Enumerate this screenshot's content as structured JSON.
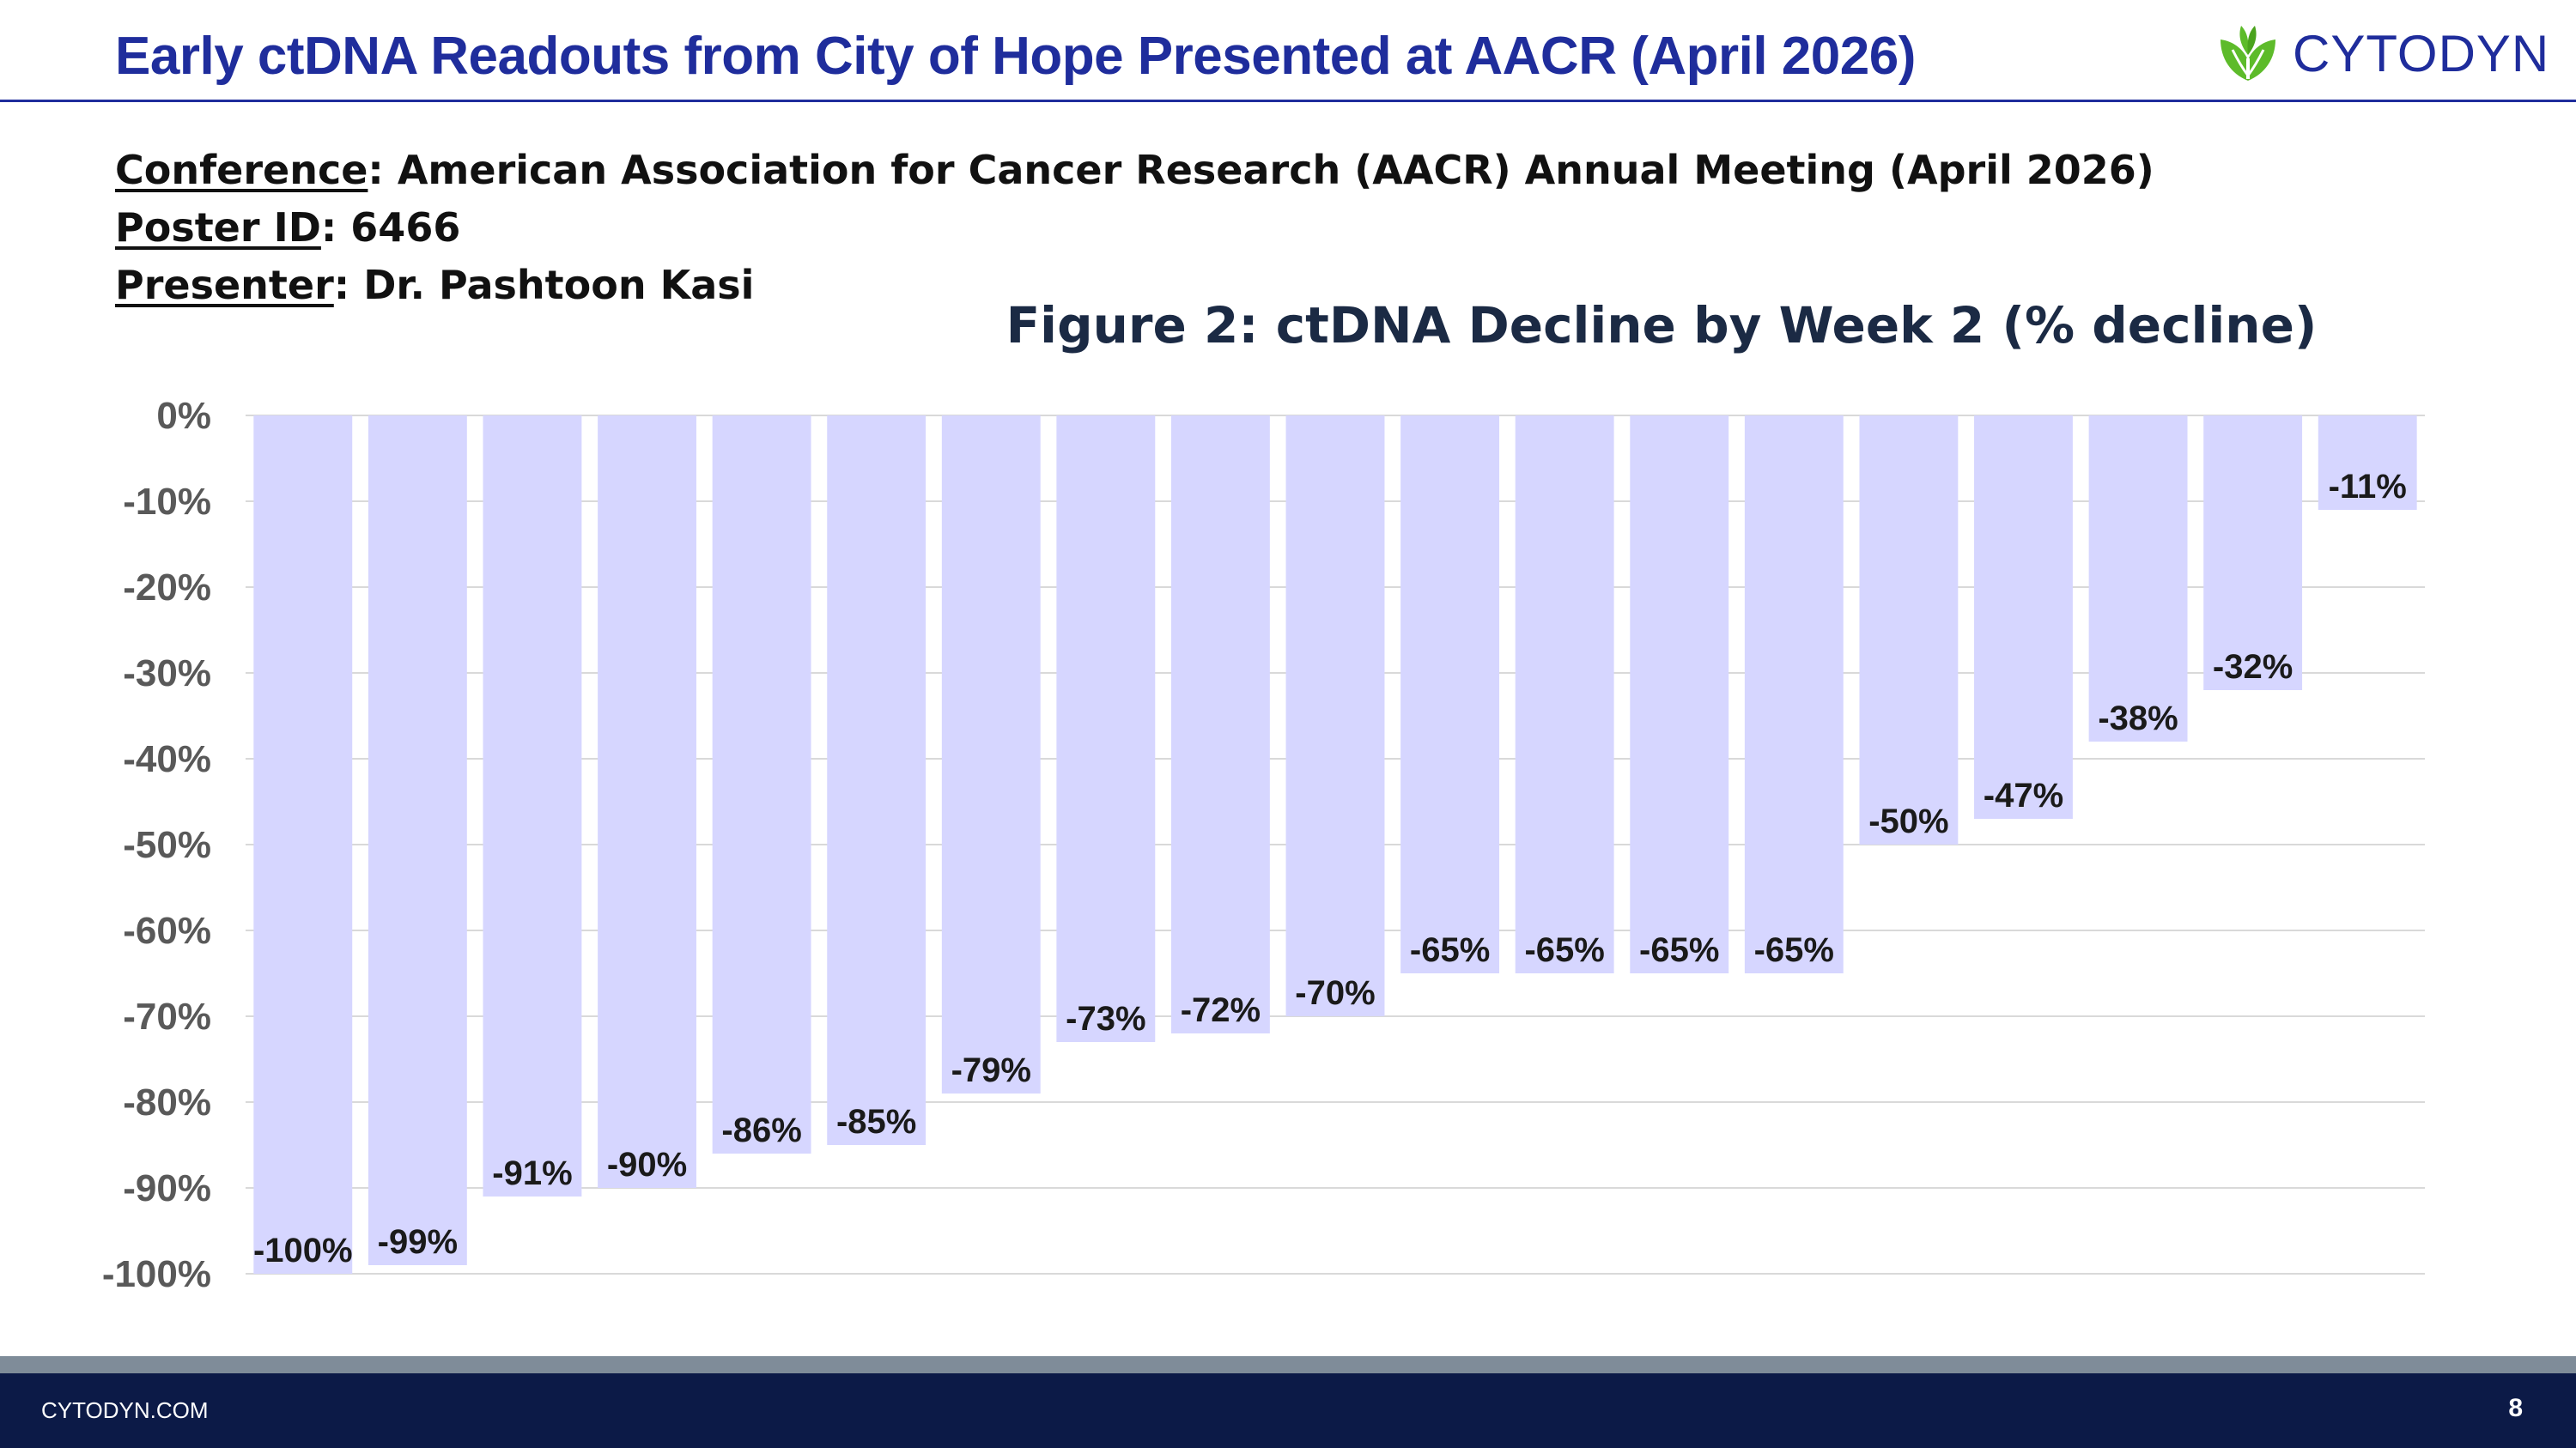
{
  "header": {
    "title": "Early ctDNA Readouts from City of Hope Presented at AACR (April 2026)",
    "logo_text": "CYTODYN"
  },
  "meta": {
    "conference_key": "Conference",
    "conference_value": ": American Association for Cancer Research (AACR) Annual Meeting (April 2026)",
    "poster_key": "Poster ID",
    "poster_value": ": 6466",
    "presenter_key": "Presenter",
    "presenter_value": ": Dr. Pashtoon Kasi"
  },
  "footer": {
    "url": "CYTODYN.COM",
    "page_number": "8"
  },
  "colors": {
    "title_blue": "#1f2d9c",
    "bar_fill": "#d6d6ff",
    "footer_navy": "#0c1a47",
    "logo_green": "#5dbb2a"
  },
  "chart_data": {
    "type": "bar",
    "title": "Figure 2: ctDNA Decline by Week 2 (% decline)",
    "xlabel": "",
    "ylabel": "",
    "categories": [
      "",
      "",
      "",
      "",
      "",
      "",
      "",
      "",
      "",
      "",
      "",
      "",
      "",
      "",
      "",
      "",
      "",
      "",
      ""
    ],
    "values": [
      -100,
      -99,
      -91,
      -90,
      -86,
      -85,
      -79,
      -73,
      -72,
      -70,
      -65,
      -65,
      -65,
      -65,
      -50,
      -47,
      -38,
      -32,
      -11
    ],
    "value_labels": [
      "-100%",
      "-99%",
      "-91%",
      "-90%",
      "-86%",
      "-85%",
      "-79%",
      "-73%",
      "-72%",
      "-70%",
      "-65%",
      "-65%",
      "-65%",
      "-65%",
      "-50%",
      "-47%",
      "-38%",
      "-32%",
      "-11%"
    ],
    "ylim": [
      -100,
      0
    ],
    "y_ticks": [
      "0%",
      "-10%",
      "-20%",
      "-30%",
      "-40%",
      "-50%",
      "-60%",
      "-70%",
      "-80%",
      "-90%",
      "-100%"
    ],
    "grid": true,
    "legend": "none"
  }
}
